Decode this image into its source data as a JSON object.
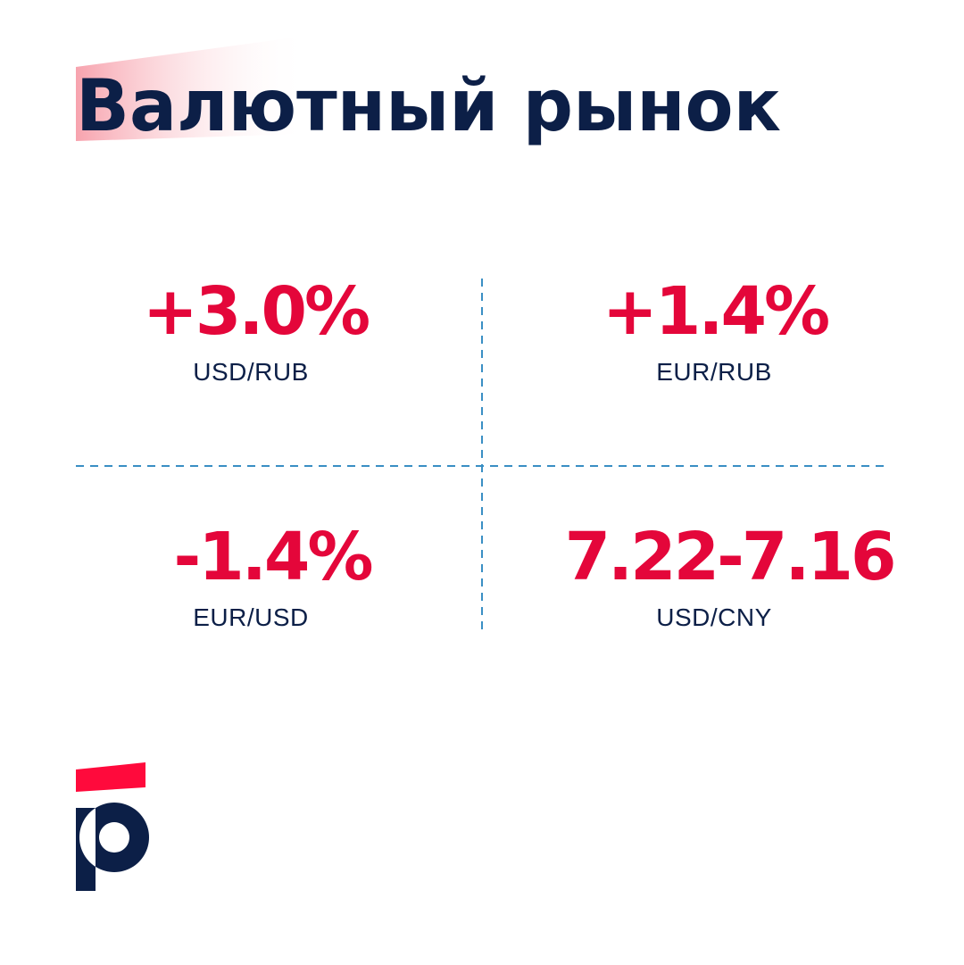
{
  "header": {
    "title": "Валютный рынок"
  },
  "cells": [
    {
      "value": "+3.0%",
      "label": "USD/RUB"
    },
    {
      "value": "+1.4%",
      "label": "EUR/RUB"
    },
    {
      "value": "-1.4%",
      "label": "EUR/USD"
    },
    {
      "value": "7.22-7.16",
      "label": "USD/CNY"
    }
  ]
}
